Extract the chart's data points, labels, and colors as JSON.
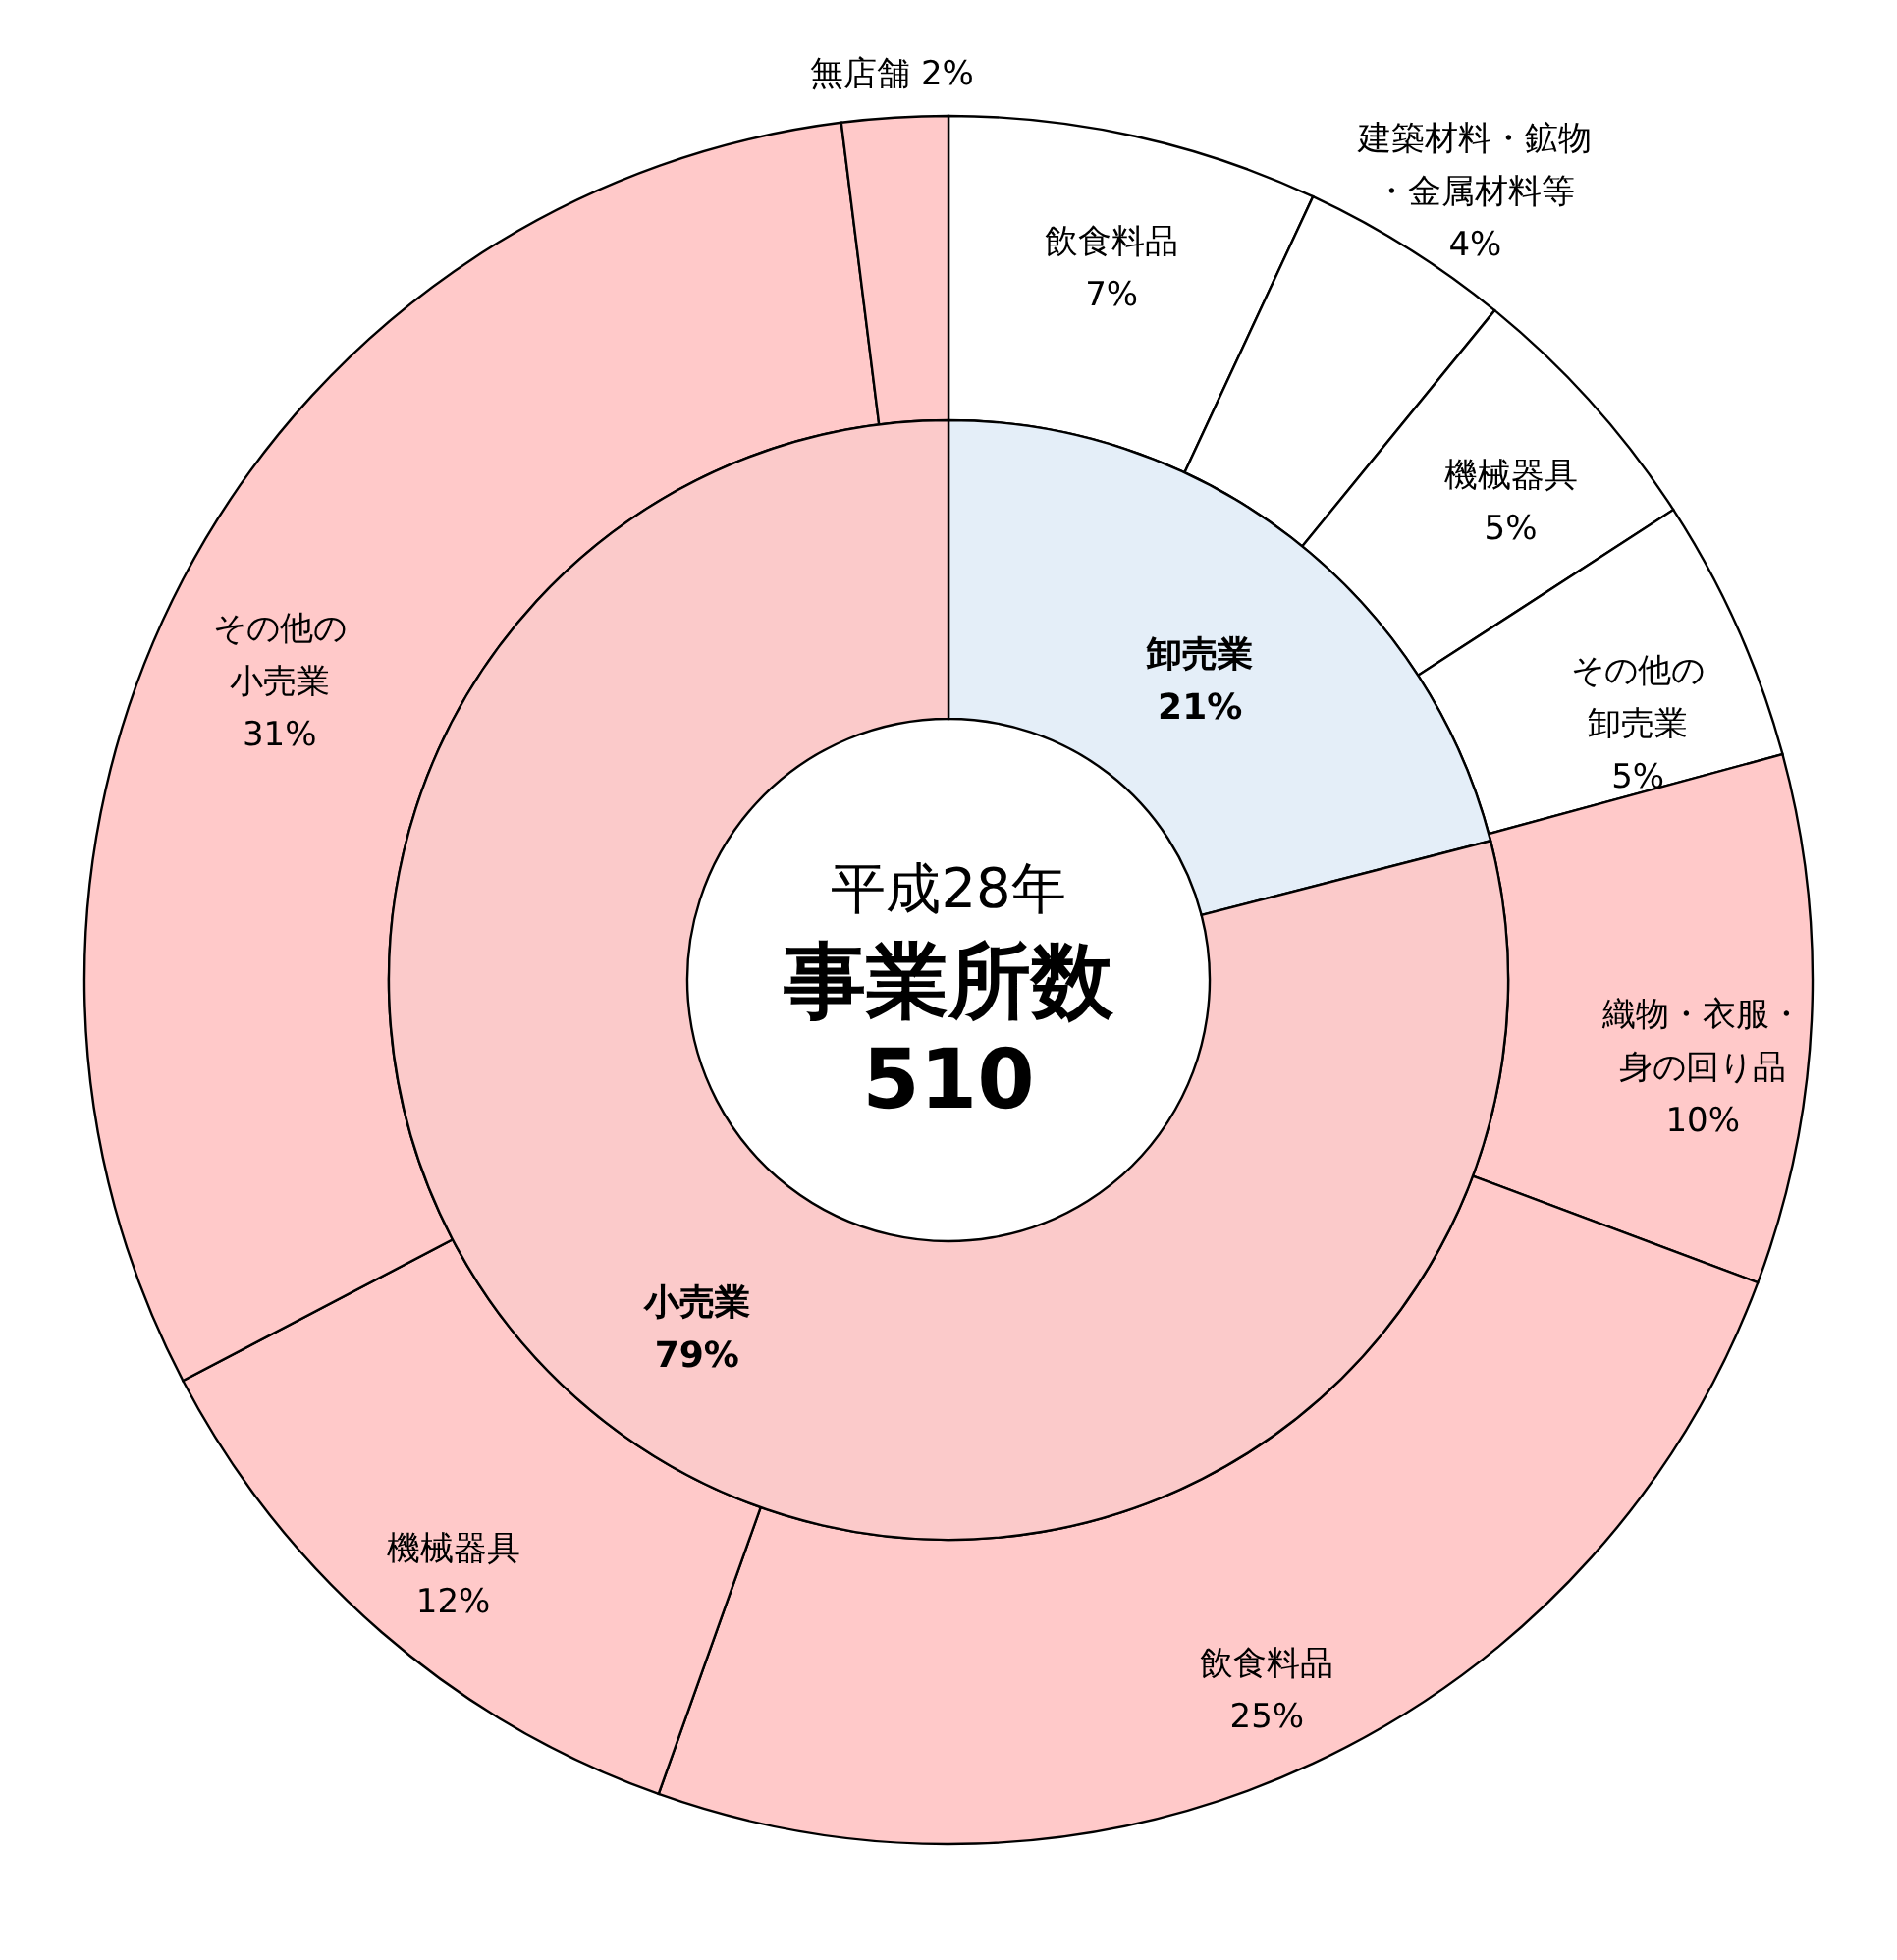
{
  "chart_data": [
    {
      "type": "donut",
      "categories": [
        "飲食料品",
        "建築材料・鉱物・金属材料等",
        "機械器具",
        "その他の卸売業",
        "織物・衣服・身の回り品",
        "飲食料品",
        "機械器具",
        "その他の小売業",
        "無店舗"
      ],
      "values": [
        7,
        4,
        5,
        5,
        10,
        25,
        12,
        31,
        2
      ],
      "value_labels": [
        "7%",
        "4%",
        "5%",
        "5%",
        "10%",
        "25%",
        "12%",
        "31%",
        "2%"
      ],
      "colors": [
        "#ffffff",
        "#ffffff",
        "#ffffff",
        "#ffffff",
        "#ffc9c9",
        "#ffc9c9",
        "#ffc9c9",
        "#ffc9c9",
        "#ffc9c9"
      ]
    },
    {
      "type": "donut",
      "categories": [
        "卸売業",
        "小売業"
      ],
      "values": [
        21,
        79
      ],
      "value_labels": [
        "21%",
        "79%"
      ],
      "colors": [
        "#e4eef8",
        "#fbcaca"
      ],
      "annotations": [
        "平成28年",
        "事業所数",
        "510"
      ]
    }
  ]
}
